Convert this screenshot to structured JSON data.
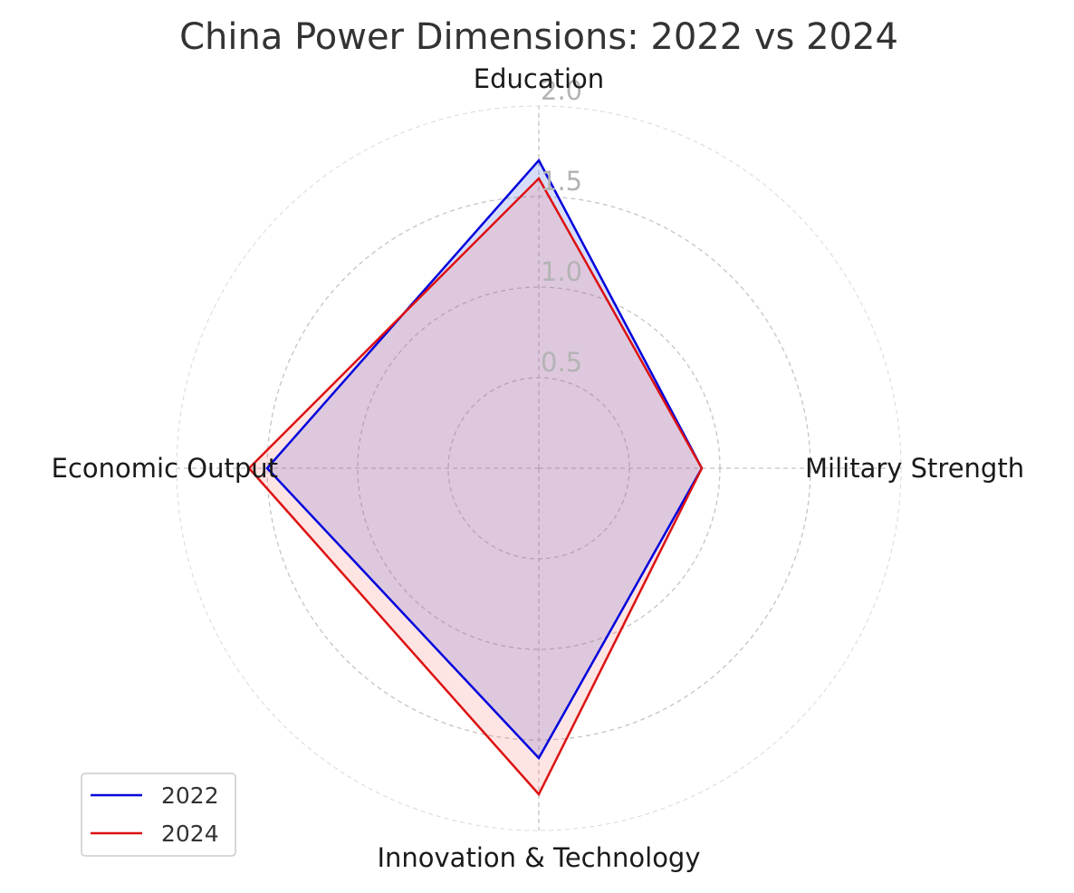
{
  "chart_data": {
    "type": "radar",
    "title": "China Power Dimensions: 2022 vs 2024",
    "categories": [
      "Education",
      "Military Strength",
      "Innovation & Technology",
      "Economic Output"
    ],
    "radial_ticks": [
      "0.5",
      "1.0",
      "1.5",
      "2.0"
    ],
    "radial_tick_values": [
      0.5,
      1.0,
      1.5,
      2.0
    ],
    "rlim": [
      0,
      2.0
    ],
    "grid": true,
    "legend_position": "lower-left",
    "series": [
      {
        "name": "2022",
        "values": [
          1.7,
          0.9,
          1.6,
          1.5
        ],
        "color": "#0000dd",
        "fill": "#3355dd"
      },
      {
        "name": "2024",
        "values": [
          1.6,
          0.9,
          1.8,
          1.6
        ],
        "color": "#dd1111",
        "fill": "#ff7777"
      }
    ]
  }
}
